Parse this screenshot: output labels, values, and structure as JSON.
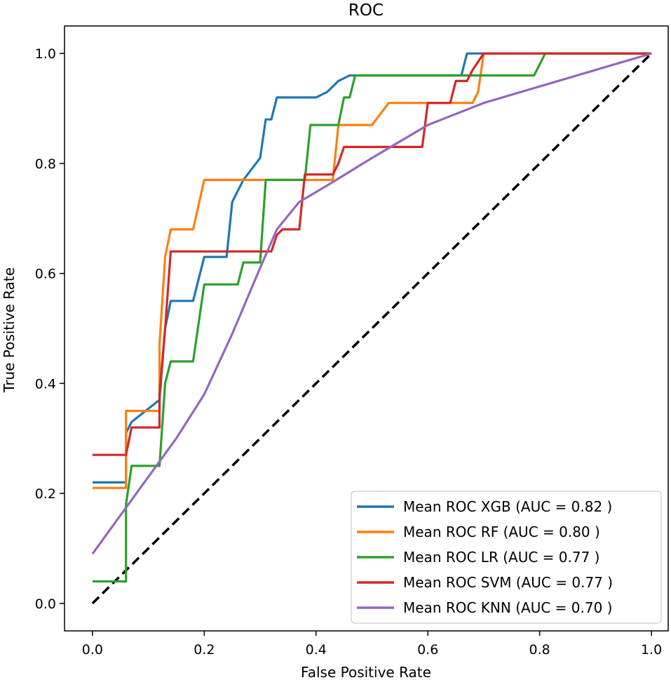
{
  "chart_data": {
    "type": "line",
    "title": "ROC",
    "xlabel": "False Positive Rate",
    "ylabel": "True Positive Rate",
    "xlim": [
      -0.05,
      1.03
    ],
    "ylim": [
      -0.05,
      1.05
    ],
    "xticks": [
      0.0,
      0.2,
      0.4,
      0.6,
      0.8,
      1.0
    ],
    "xtick_labels": [
      "0.0",
      "0.2",
      "0.4",
      "0.6",
      "0.8",
      "1.0"
    ],
    "yticks": [
      0.0,
      0.2,
      0.4,
      0.6,
      0.8,
      1.0
    ],
    "ytick_labels": [
      "0.0",
      "0.2",
      "0.4",
      "0.6",
      "0.8",
      "1.0"
    ],
    "grid": false,
    "legend_position": "bottom-right",
    "chance_line": {
      "x": [
        0,
        1
      ],
      "y": [
        0,
        1
      ],
      "color": "#000000",
      "style": "dashed"
    },
    "series": [
      {
        "name": "Mean ROC XGB (AUC = 0.82 )",
        "color": "#1f77b4",
        "x": [
          0,
          0.06,
          0.06,
          0.07,
          0.12,
          0.13,
          0.14,
          0.18,
          0.2,
          0.24,
          0.25,
          0.27,
          0.3,
          0.31,
          0.32,
          0.33,
          0.4,
          0.42,
          0.44,
          0.46,
          0.6,
          0.66,
          0.67,
          1.0
        ],
        "y": [
          0.22,
          0.22,
          0.31,
          0.33,
          0.37,
          0.5,
          0.55,
          0.55,
          0.63,
          0.63,
          0.73,
          0.77,
          0.81,
          0.88,
          0.88,
          0.92,
          0.92,
          0.93,
          0.95,
          0.96,
          0.96,
          0.96,
          1.0,
          1.0
        ]
      },
      {
        "name": "Mean ROC RF (AUC = 0.80 )",
        "color": "#ff7f0e",
        "x": [
          0,
          0.06,
          0.06,
          0.12,
          0.12,
          0.13,
          0.14,
          0.18,
          0.2,
          0.43,
          0.44,
          0.5,
          0.53,
          0.68,
          0.69,
          0.7,
          1.0
        ],
        "y": [
          0.21,
          0.21,
          0.35,
          0.35,
          0.47,
          0.63,
          0.68,
          0.68,
          0.77,
          0.77,
          0.87,
          0.87,
          0.91,
          0.91,
          0.93,
          1.0,
          1.0
        ]
      },
      {
        "name": "Mean ROC LR (AUC = 0.77 )",
        "color": "#2ca02c",
        "x": [
          0,
          0.06,
          0.06,
          0.07,
          0.12,
          0.13,
          0.14,
          0.18,
          0.2,
          0.26,
          0.27,
          0.3,
          0.31,
          0.38,
          0.39,
          0.44,
          0.45,
          0.46,
          0.47,
          0.79,
          0.81,
          1.0
        ],
        "y": [
          0.04,
          0.04,
          0.18,
          0.25,
          0.25,
          0.4,
          0.44,
          0.44,
          0.58,
          0.58,
          0.62,
          0.62,
          0.77,
          0.77,
          0.87,
          0.87,
          0.92,
          0.92,
          0.96,
          0.96,
          1.0,
          1.0
        ]
      },
      {
        "name": "Mean ROC SVM (AUC = 0.77 )",
        "color": "#d62728",
        "x": [
          0,
          0.06,
          0.07,
          0.12,
          0.12,
          0.13,
          0.14,
          0.32,
          0.33,
          0.34,
          0.37,
          0.38,
          0.43,
          0.44,
          0.45,
          0.59,
          0.6,
          0.64,
          0.65,
          0.67,
          0.68,
          0.7,
          1.0
        ],
        "y": [
          0.27,
          0.27,
          0.32,
          0.32,
          0.38,
          0.5,
          0.64,
          0.64,
          0.67,
          0.68,
          0.68,
          0.78,
          0.78,
          0.8,
          0.83,
          0.83,
          0.91,
          0.91,
          0.95,
          0.95,
          0.97,
          1.0,
          1.0
        ]
      },
      {
        "name": "Mean ROC KNN (AUC = 0.70 )",
        "color": "#9467bd",
        "x": [
          0,
          0.05,
          0.1,
          0.15,
          0.2,
          0.25,
          0.3,
          0.33,
          0.37,
          0.42,
          0.5,
          0.6,
          0.7,
          0.8,
          0.9,
          1.0
        ],
        "y": [
          0.09,
          0.16,
          0.23,
          0.3,
          0.38,
          0.49,
          0.61,
          0.68,
          0.73,
          0.76,
          0.81,
          0.87,
          0.91,
          0.94,
          0.97,
          1.0
        ]
      }
    ]
  }
}
